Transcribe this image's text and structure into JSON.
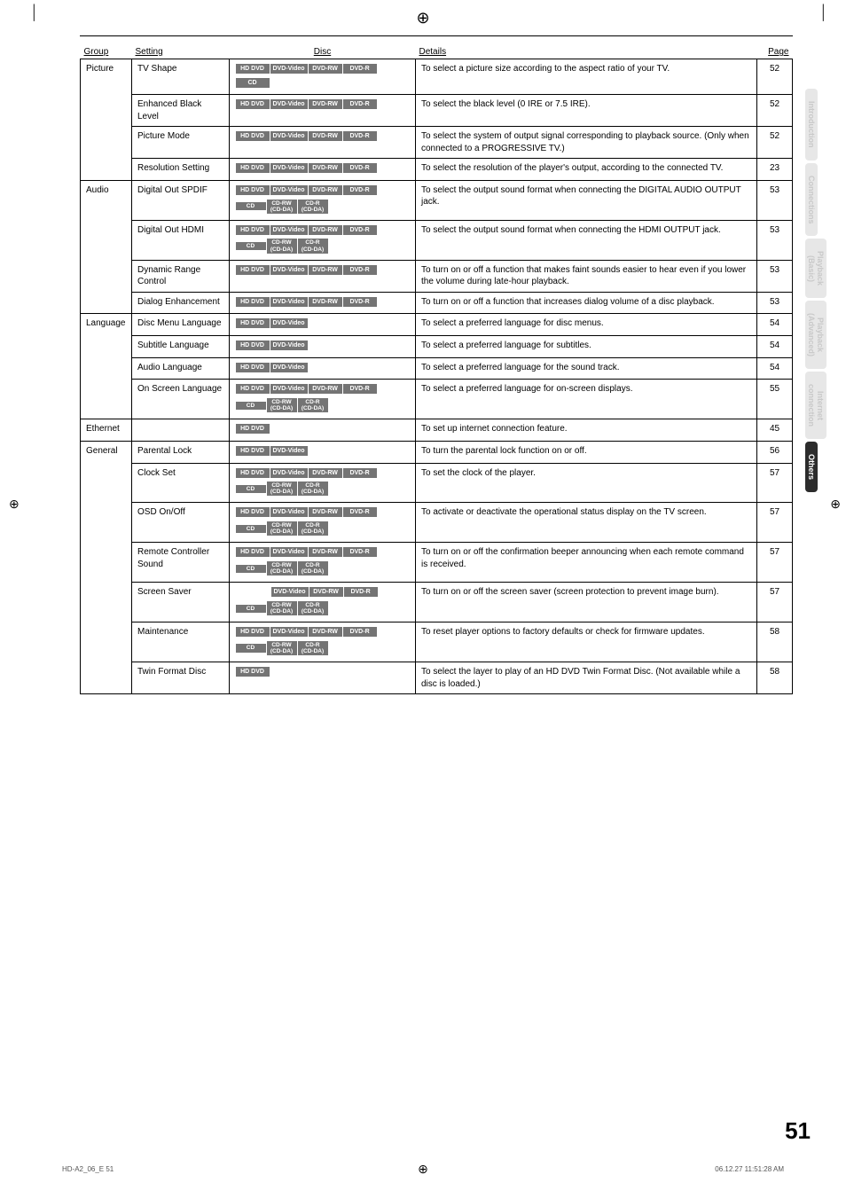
{
  "headers": {
    "group": "Group",
    "setting": "Setting",
    "disc": "Disc",
    "details": "Details",
    "page": "Page"
  },
  "badges": {
    "hddvd": "HD DVD",
    "dvdvideo": "DVD-Video",
    "dvdrw": "DVD-RW",
    "dvdr": "DVD-R",
    "cd": "CD",
    "cdrw": "CD-RW\n(CD-DA)",
    "cdr": "CD-R\n(CD-DA)"
  },
  "rows": [
    {
      "group": "Picture",
      "setting": "TV Shape",
      "disc": [
        "row4",
        "cd"
      ],
      "details": "To select a picture size according to the aspect ratio of your TV.",
      "page": "52",
      "groupspan": 4
    },
    {
      "setting": "Enhanced Black Level",
      "disc": [
        "row4"
      ],
      "details": "To select the black level (0 IRE or 7.5 IRE).",
      "page": "52"
    },
    {
      "setting": "Picture Mode",
      "disc": [
        "row4"
      ],
      "details": "To select the system of output signal corresponding to playback source. (Only when connected to a PROGRESSIVE TV.)",
      "page": "52"
    },
    {
      "setting": "Resolution Setting",
      "disc": [
        "row4"
      ],
      "details": "To select the resolution of the player's output, according to the connected TV.",
      "page": "23"
    },
    {
      "group": "Audio",
      "setting": "Digital Out SPDIF",
      "disc": [
        "row4",
        "cdrow"
      ],
      "details": "To select the output sound format when connecting the DIGITAL AUDIO OUTPUT jack.",
      "page": "53",
      "groupspan": 4
    },
    {
      "setting": "Digital Out HDMI",
      "disc": [
        "row4",
        "cdrow"
      ],
      "details": "To select the output sound format when connecting the HDMI OUTPUT jack.",
      "page": "53"
    },
    {
      "setting": "Dynamic Range Control",
      "disc": [
        "row4"
      ],
      "details": "To turn on or off a function that makes faint sounds easier to hear even if you lower the volume during late-hour playback.",
      "page": "53"
    },
    {
      "setting": "Dialog Enhancement",
      "disc": [
        "row4"
      ],
      "details": "To turn on or off a function that increases dialog volume of a disc playback.",
      "page": "53"
    },
    {
      "group": "Language",
      "setting": "Disc Menu Language",
      "disc": [
        "hdv"
      ],
      "details": "To select a preferred language for disc menus.",
      "page": "54",
      "groupspan": 4
    },
    {
      "setting": "Subtitle Language",
      "disc": [
        "hdv"
      ],
      "details": "To select a preferred language for subtitles.",
      "page": "54"
    },
    {
      "setting": "Audio Language",
      "disc": [
        "hdv"
      ],
      "details": "To select a preferred language for the sound track.",
      "page": "54"
    },
    {
      "setting": "On Screen Language",
      "disc": [
        "row4",
        "cdrow"
      ],
      "details": "To select a preferred language for on-screen displays.",
      "page": "55"
    },
    {
      "group": "Ethernet",
      "setting": "",
      "disc": [
        "hd"
      ],
      "details": "To set up internet connection feature.",
      "page": "45",
      "groupspan": 1
    },
    {
      "group": "General",
      "setting": "Parental Lock",
      "disc": [
        "hdv"
      ],
      "details": "To turn the parental lock function on or off.",
      "page": "56",
      "groupspan": 7
    },
    {
      "setting": "Clock Set",
      "disc": [
        "row4",
        "cdrow"
      ],
      "details": "To set the clock of the player.",
      "page": "57"
    },
    {
      "setting": "OSD On/Off",
      "disc": [
        "row4",
        "cdrow"
      ],
      "details": "To activate or deactivate the operational status display on the TV screen.",
      "page": "57"
    },
    {
      "setting": "Remote Controller Sound",
      "disc": [
        "row4",
        "cdrow"
      ],
      "details": "To turn on or off the confirmation beeper announcing when each remote command is received.",
      "page": "57"
    },
    {
      "setting": "Screen Saver",
      "disc": [
        "row3",
        "cdrow"
      ],
      "details": "To turn on or off the screen saver (screen protection to prevent image burn).",
      "page": "57"
    },
    {
      "setting": "Maintenance",
      "disc": [
        "row4",
        "cdrow"
      ],
      "details": "To reset player options to factory defaults or check for firmware updates.",
      "page": "58"
    },
    {
      "setting": "Twin Format Disc",
      "disc": [
        "hd"
      ],
      "details": "To select the layer to play of an HD DVD Twin Format Disc. (Not available while a disc is loaded.)",
      "page": "58"
    }
  ],
  "tabs": [
    "Introduction",
    "Connections",
    "Playback\n(Basic)",
    "Playback\n(Advanced)",
    "Internet\nconnection",
    "Others"
  ],
  "page_number": "51",
  "footer_left": "HD-A2_06_E   51",
  "footer_right": "06.12.27   11:51:28 AM"
}
